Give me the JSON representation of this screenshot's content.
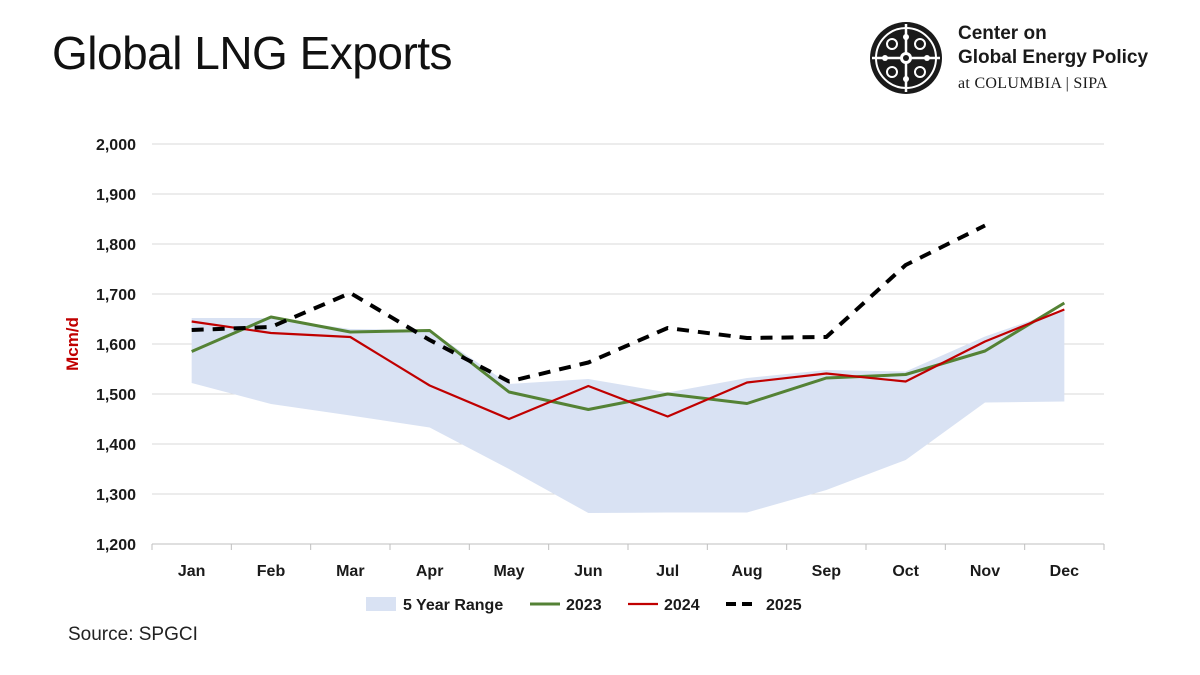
{
  "page": {
    "title": "Global LNG Exports",
    "source": "Source: SPGCI"
  },
  "brand": {
    "line1": "Center on",
    "line2": "Global Energy Policy",
    "sub": "at COLUMBIA | SIPA",
    "logo_icon": "cgep-seal-icon"
  },
  "colors": {
    "range": "#d9e2f3",
    "s2023": "#548235",
    "s2024": "#c00000",
    "s2025": "#000000",
    "ylabel": "#c00000",
    "grid": "#d9d9d9"
  },
  "chart_data": {
    "type": "line",
    "title": "Global LNG Exports",
    "xlabel": "",
    "ylabel": "Mcm/d",
    "ylim": [
      1200,
      2000
    ],
    "yticks": [
      2000,
      1900,
      1800,
      1700,
      1600,
      1500,
      1400,
      1300,
      1200
    ],
    "yticklabels": [
      "2,000",
      "1,900",
      "1,800",
      "1,700",
      "1,600",
      "1,500",
      "1,400",
      "1,300",
      "1,200"
    ],
    "grid": true,
    "legend_position": "bottom",
    "categories": [
      "Jan",
      "Feb",
      "Mar",
      "Apr",
      "May",
      "Jun",
      "Jul",
      "Aug",
      "Sep",
      "Oct",
      "Nov",
      "Dec"
    ],
    "range": {
      "name": "5 Year Range",
      "low": [
        1522,
        1480,
        1457,
        1433,
        1350,
        1262,
        1263,
        1263,
        1308,
        1368,
        1483,
        1485
      ],
      "high": [
        1652,
        1652,
        1630,
        1628,
        1520,
        1530,
        1503,
        1532,
        1548,
        1545,
        1615,
        1670
      ]
    },
    "series": [
      {
        "name": "2023",
        "values": [
          1585,
          1654,
          1624,
          1627,
          1504,
          1469,
          1500,
          1481,
          1532,
          1539,
          1586,
          1682
        ]
      },
      {
        "name": "2024",
        "values": [
          1645,
          1622,
          1614,
          1517,
          1450,
          1516,
          1455,
          1523,
          1541,
          1525,
          1605,
          1669
        ]
      },
      {
        "name": "2025",
        "values": [
          1628,
          1634,
          1702,
          1608,
          1525,
          1563,
          1632,
          1612,
          1614,
          1758,
          1837,
          null
        ]
      }
    ]
  }
}
